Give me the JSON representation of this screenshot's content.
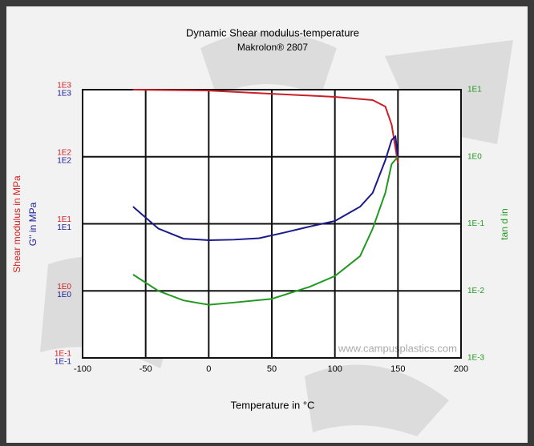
{
  "chart_data": {
    "type": "line",
    "title": "Dynamic Shear modulus-temperature",
    "subtitle": "Makrolon® 2807",
    "xlabel": "Temperature in °C",
    "ylabel": "Shear modulus in MPa",
    "ylabel_2": "G'' in MPa",
    "y2label": "tan d in",
    "watermark": "www.campusplastics.com",
    "xlim": [
      -100,
      200
    ],
    "xticks": [
      -100,
      -50,
      0,
      50,
      100,
      150,
      200
    ],
    "ylim": [
      0.1,
      1000
    ],
    "y_log": true,
    "yticks": [
      {
        "value": 0.1,
        "label": "1E-1"
      },
      {
        "value": 1,
        "label": "1E0"
      },
      {
        "value": 10,
        "label": "1E1"
      },
      {
        "value": 100,
        "label": "1E2"
      },
      {
        "value": 1000,
        "label": "1E3"
      }
    ],
    "yticks_2": [
      {
        "value": 0.1,
        "label": "1E-1"
      },
      {
        "value": 1,
        "label": "1E0"
      },
      {
        "value": 10,
        "label": "1E1"
      },
      {
        "value": 100,
        "label": "1E2"
      },
      {
        "value": 1000,
        "label": "1E3"
      }
    ],
    "y2lim": [
      0.001,
      10
    ],
    "y2_log": true,
    "y2ticks": [
      {
        "value": 0.001,
        "label": "1E-3"
      },
      {
        "value": 0.01,
        "label": "1E-2"
      },
      {
        "value": 0.1,
        "label": "1E-1"
      },
      {
        "value": 1,
        "label": "1E0"
      },
      {
        "value": 10,
        "label": "1E1"
      }
    ],
    "grid": true,
    "ylabel_color": "#d42020",
    "ylabel_2_color": "#1a1a9a",
    "y2label_color": "#1f9a1f",
    "series": [
      {
        "color": "#c8202a",
        "axis": "y",
        "x": [
          -60,
          0,
          50,
          100,
          130,
          140,
          145,
          150
        ],
        "values": [
          1000,
          970,
          870,
          780,
          700,
          560,
          300,
          80
        ]
      },
      {
        "color": "#1a1a8a",
        "axis": "y",
        "x": [
          -60,
          -40,
          -20,
          0,
          20,
          40,
          60,
          80,
          100,
          120,
          130,
          140,
          145,
          148,
          150
        ],
        "values": [
          18,
          8.5,
          6,
          5.7,
          5.8,
          6.1,
          7.4,
          9.1,
          11,
          18,
          29,
          89,
          178,
          200,
          100
        ]
      },
      {
        "color": "#1f9a1f",
        "axis": "y2",
        "x": [
          -60,
          -40,
          -20,
          0,
          20,
          50,
          80,
          100,
          120,
          130,
          140,
          145,
          150
        ],
        "values": [
          0.0175,
          0.01,
          0.0072,
          0.0062,
          0.0067,
          0.0076,
          0.0115,
          0.0166,
          0.033,
          0.085,
          0.29,
          0.78,
          1.0
        ]
      }
    ]
  }
}
